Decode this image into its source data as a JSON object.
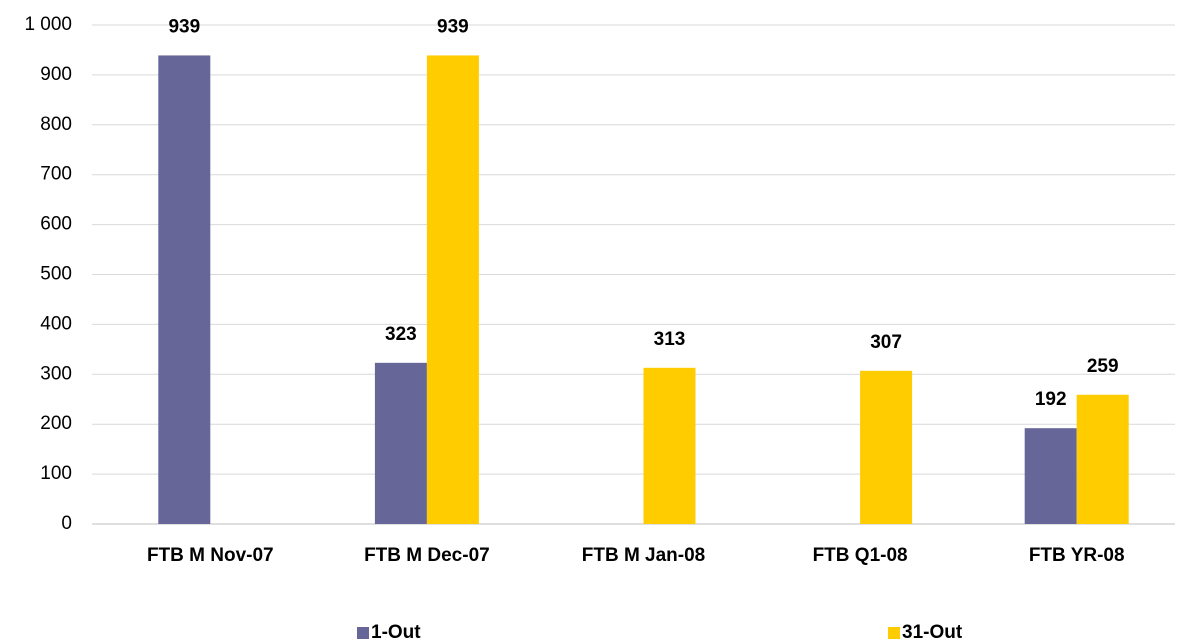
{
  "chart_data": {
    "type": "bar",
    "categories": [
      "FTB M Nov-07",
      "FTB M Dec-07",
      "FTB M Jan-08",
      "FTB Q1-08",
      "FTB YR-08"
    ],
    "series": [
      {
        "name": "1-Out",
        "color": "#666699",
        "values": [
          939,
          323,
          null,
          null,
          192
        ]
      },
      {
        "name": "31-Out",
        "color": "#ffcc00",
        "values": [
          null,
          939,
          313,
          307,
          259
        ]
      }
    ],
    "ylim": [
      0,
      1000
    ],
    "yticks": [
      0,
      100,
      200,
      300,
      400,
      500,
      600,
      700,
      800,
      900,
      {
        "value": 1000,
        "label": "1 000"
      }
    ],
    "grid": true,
    "legend": "bottom"
  }
}
